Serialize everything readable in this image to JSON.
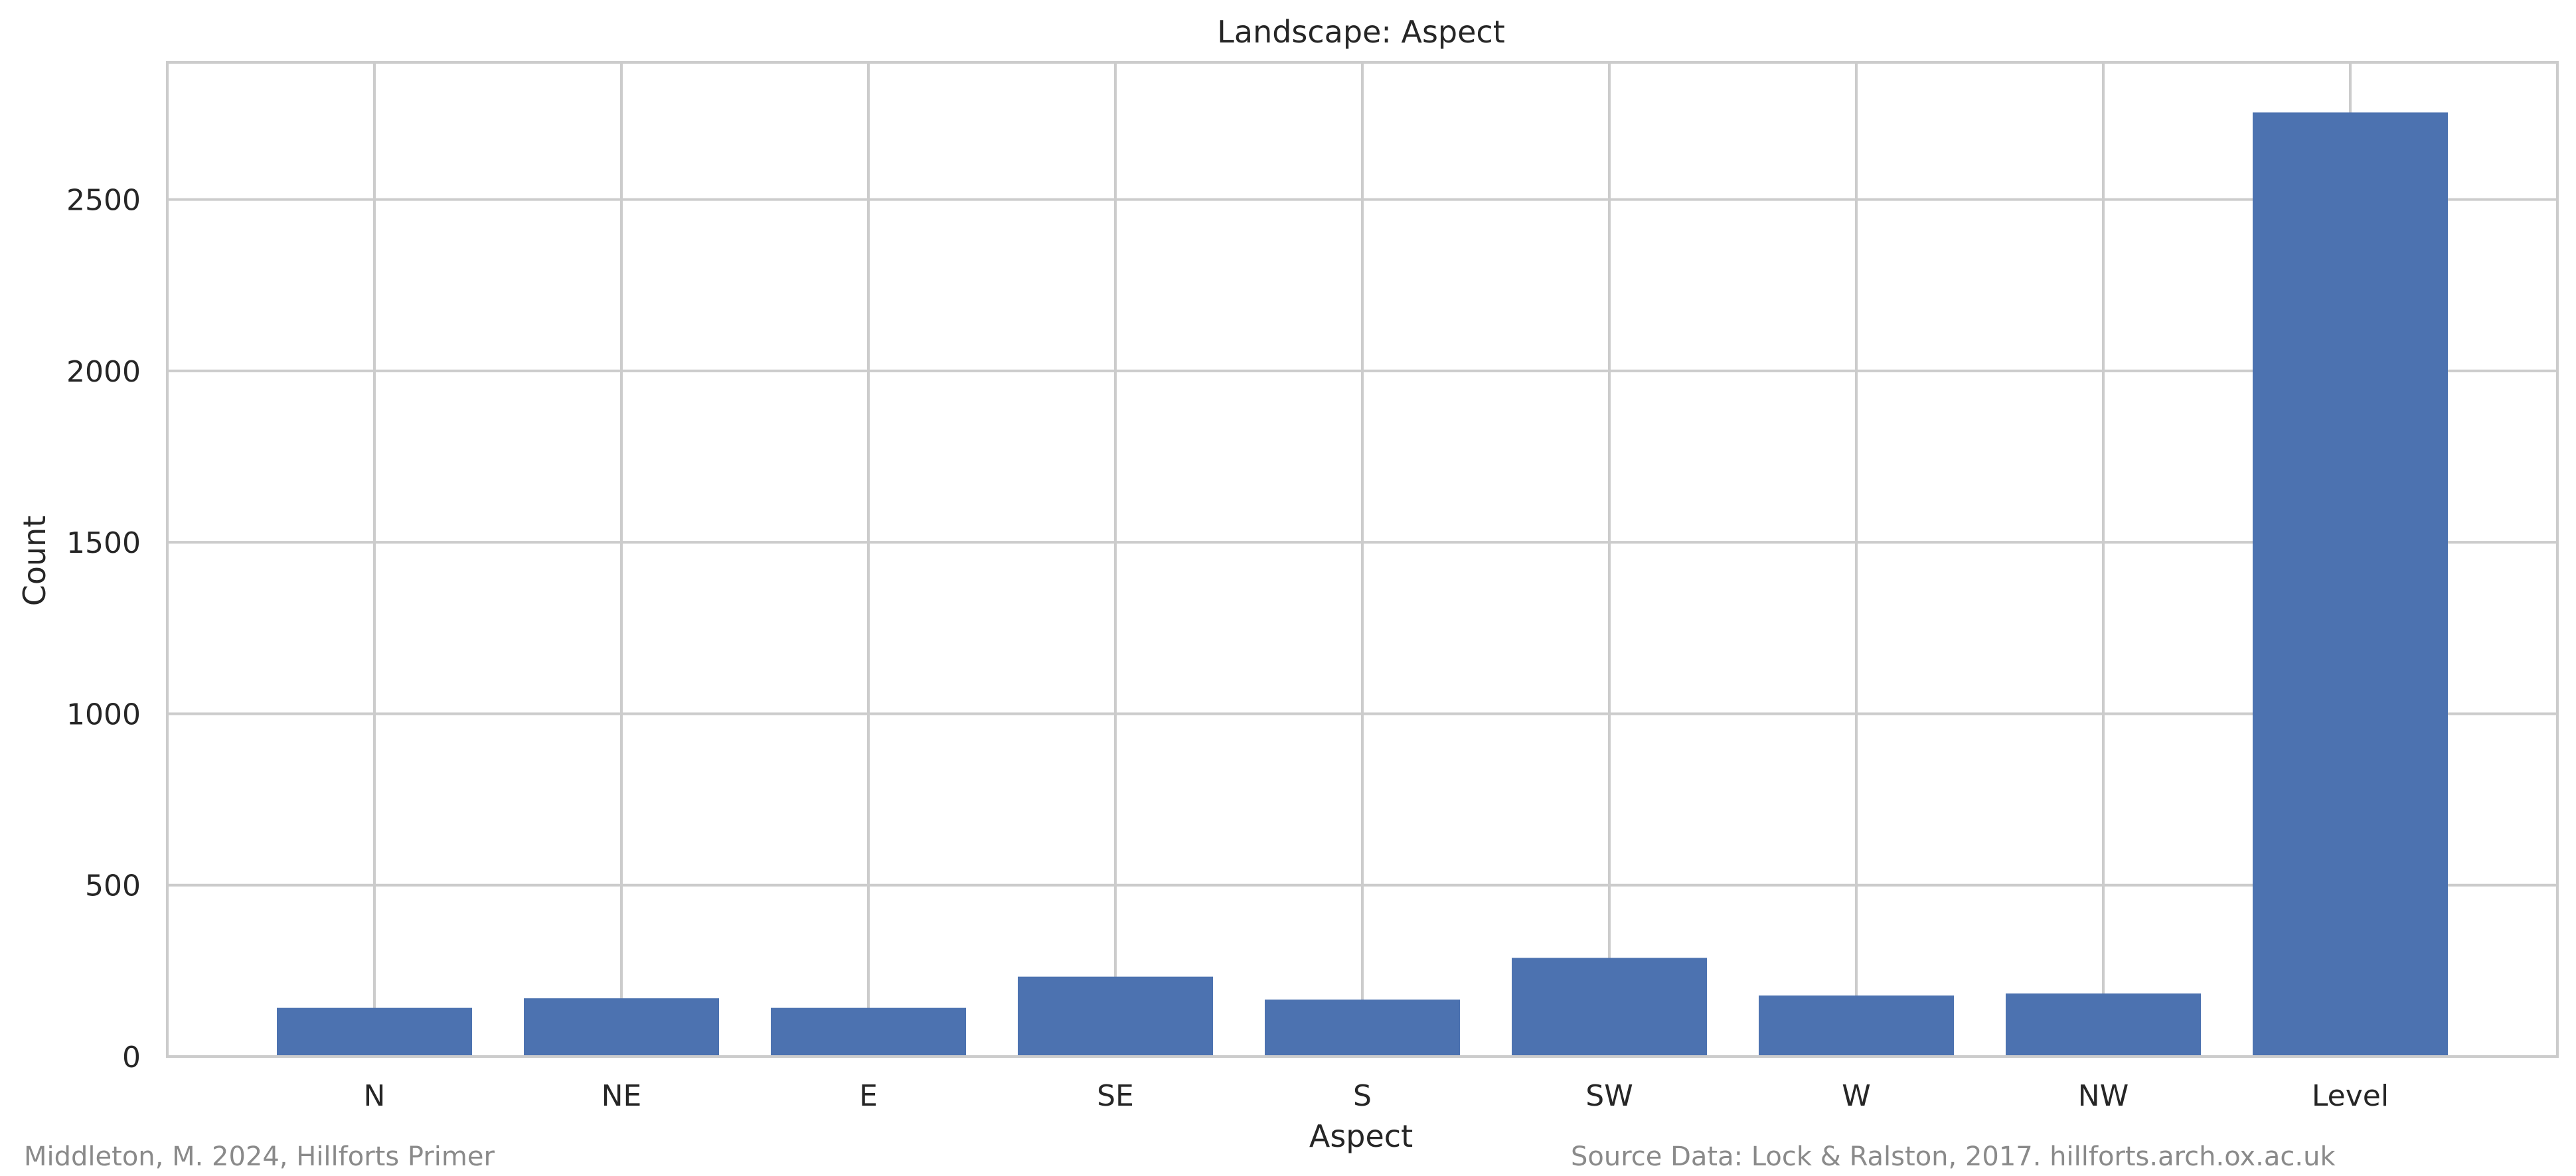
{
  "chart_data": {
    "type": "bar",
    "title": "Landscape: Aspect",
    "xlabel": "Aspect",
    "ylabel": "Count",
    "categories": [
      "N",
      "NE",
      "E",
      "SE",
      "S",
      "SW",
      "W",
      "NW",
      "Level"
    ],
    "values": [
      142,
      170,
      142,
      233,
      166,
      288,
      178,
      184,
      2754
    ],
    "ylim": [
      0,
      2900
    ],
    "yticks": [
      0,
      500,
      1000,
      1500,
      2000,
      2500
    ],
    "grid": true,
    "bar_color": "#4c72b0",
    "grid_color": "#cccccc",
    "text_color": "#262626"
  },
  "credits": {
    "left": "Middleton, M. 2024, Hillforts Primer",
    "right": "Source Data: Lock & Ralston, 2017. hillforts.arch.ox.ac.uk"
  }
}
